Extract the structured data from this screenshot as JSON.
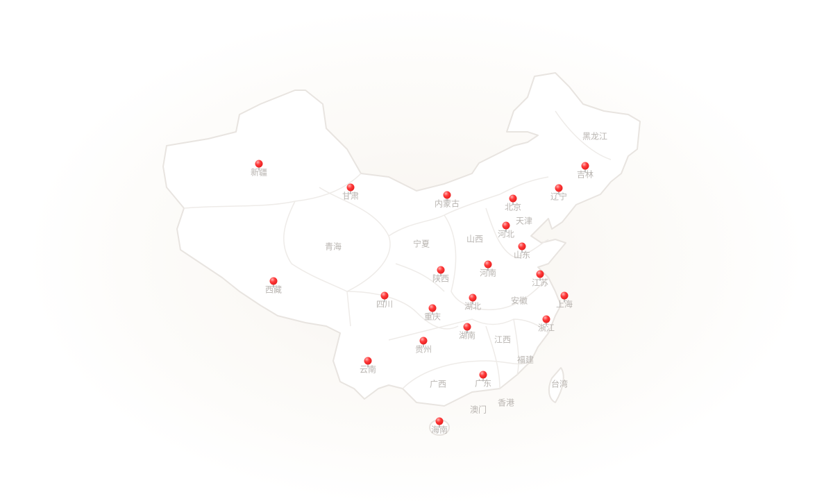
{
  "map": {
    "region": "China",
    "colors": {
      "province_fill": "#ffffff",
      "border": "#e8e4e0",
      "label": "#b9b5b1",
      "pin": "#e61b1b"
    },
    "provinces": [
      {
        "name": "新疆",
        "pin": true
      },
      {
        "name": "甘肃",
        "pin": true
      },
      {
        "name": "内蒙古",
        "pin": true
      },
      {
        "name": "北京",
        "pin": true
      },
      {
        "name": "辽宁",
        "pin": true
      },
      {
        "name": "吉林",
        "pin": true
      },
      {
        "name": "黑龙江",
        "pin": false
      },
      {
        "name": "天津",
        "pin": false
      },
      {
        "name": "河北",
        "pin": true
      },
      {
        "name": "山西",
        "pin": false
      },
      {
        "name": "宁夏",
        "pin": false
      },
      {
        "name": "青海",
        "pin": false
      },
      {
        "name": "山东",
        "pin": true
      },
      {
        "name": "陕西",
        "pin": true
      },
      {
        "name": "河南",
        "pin": true
      },
      {
        "name": "江苏",
        "pin": true
      },
      {
        "name": "西藏",
        "pin": true
      },
      {
        "name": "四川",
        "pin": true
      },
      {
        "name": "湖北",
        "pin": true
      },
      {
        "name": "安徽",
        "pin": false
      },
      {
        "name": "上海",
        "pin": true
      },
      {
        "name": "重庆",
        "pin": true
      },
      {
        "name": "浙江",
        "pin": true
      },
      {
        "name": "湖南",
        "pin": true
      },
      {
        "name": "江西",
        "pin": false
      },
      {
        "name": "贵州",
        "pin": true
      },
      {
        "name": "福建",
        "pin": false
      },
      {
        "name": "云南",
        "pin": true
      },
      {
        "name": "广西",
        "pin": false
      },
      {
        "name": "广东",
        "pin": true
      },
      {
        "name": "台湾",
        "pin": false
      },
      {
        "name": "香港",
        "pin": false
      },
      {
        "name": "澳门",
        "pin": false
      },
      {
        "name": "海南",
        "pin": true
      }
    ]
  }
}
